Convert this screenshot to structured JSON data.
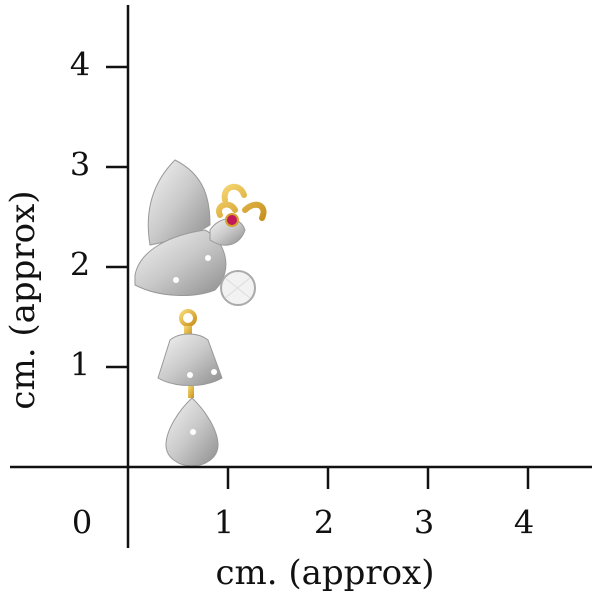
{
  "axes": {
    "origin_label": "0",
    "x_label": "cm. (approx)",
    "y_label": "cm. (approx)",
    "xticks": [
      1,
      2,
      3,
      4
    ],
    "yticks": [
      1,
      2,
      3,
      4
    ]
  }
}
